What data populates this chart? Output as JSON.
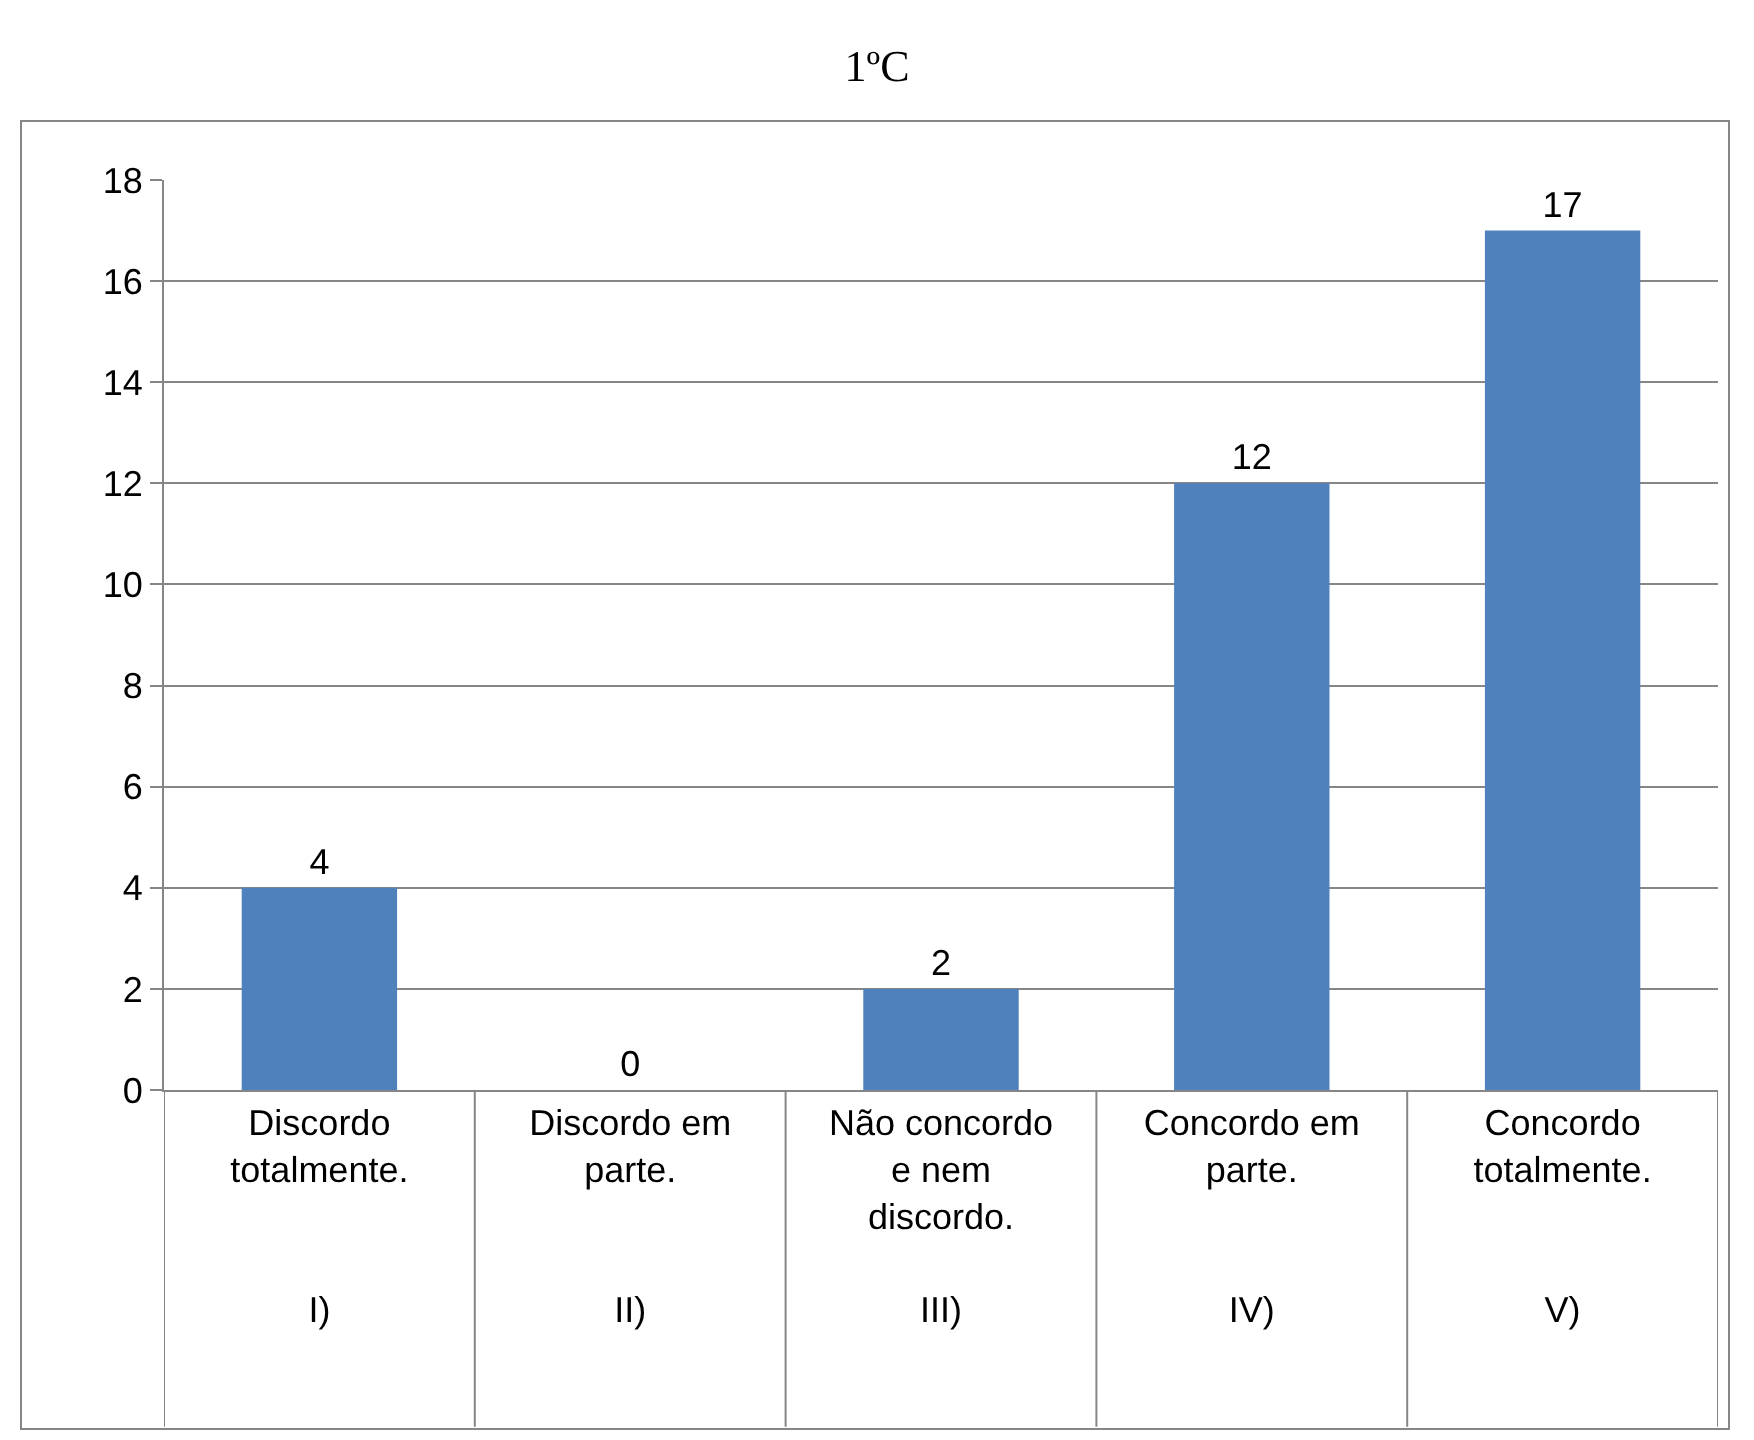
{
  "chart_data": {
    "type": "bar",
    "title": "1ºC",
    "categories": [
      "Discordo totalmente. I)",
      "Discordo em parte. II)",
      "Não concordo e nem discordo. III)",
      "Concordo em parte. IV)",
      "Concordo totalmente. V)"
    ],
    "values": [
      4,
      0,
      2,
      12,
      17
    ],
    "color": "#4f81bd",
    "ylim": [
      0,
      18
    ],
    "yticks": [
      0,
      2,
      4,
      6,
      8,
      10,
      12,
      14,
      16,
      18
    ],
    "grid": "y",
    "data_labels": true
  }
}
